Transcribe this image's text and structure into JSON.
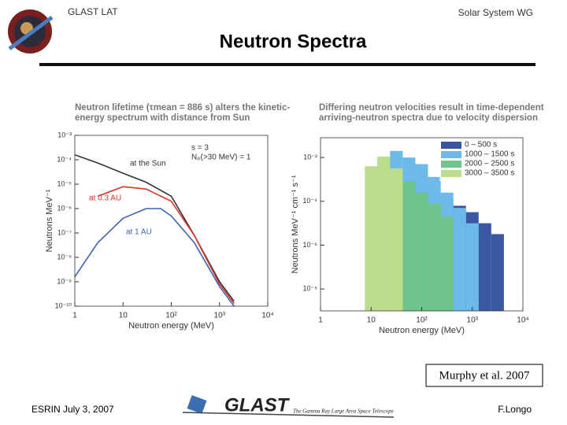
{
  "header": {
    "left": "GLAST LAT",
    "right": "Solar System WG",
    "title": "Neutron Spectra"
  },
  "citation": "Murphy et al. 2007",
  "footer": {
    "left": "ESRIN July 3, 2007",
    "logo": "GLAST",
    "tagline": "The Gamma Ray Large Area Space Telescope",
    "right": "F.Longo"
  },
  "chart_data": [
    {
      "type": "line",
      "log_x": true,
      "log_y": true,
      "title": "Neutron lifetime (τmean = 886 s) alters the kinetic-energy spectrum with distance from Sun",
      "x_label": "Neutron energy (MeV)",
      "y_label": "Neutrons MeV⁻¹",
      "annotations": [
        "s = 3",
        "Nₚ(>30 MeV) = 1"
      ],
      "xlim": [
        1,
        10000
      ],
      "xticks": [
        1,
        10,
        {
          "value": 100,
          "label": "10²"
        },
        {
          "value": 1000,
          "label": "10³"
        },
        {
          "value": 10000,
          "label": "10⁴"
        }
      ],
      "ylim": [
        1e-10,
        0.001
      ],
      "yticks": [
        {
          "value": 0.001,
          "label": "10⁻³"
        },
        {
          "value": 0.0001,
          "label": "10⁻⁴"
        },
        {
          "value": 1e-05,
          "label": "10⁻⁵"
        },
        {
          "value": 1e-06,
          "label": "10⁻⁶"
        },
        {
          "value": 1e-07,
          "label": "10⁻⁷"
        },
        {
          "value": 1e-08,
          "label": "10⁻⁸"
        },
        {
          "value": 1e-09,
          "label": "10⁻⁹"
        },
        {
          "value": 1e-10,
          "label": "10⁻¹⁰"
        }
      ],
      "series": [
        {
          "name": "at the Sun",
          "color": "#333333",
          "x": [
            1,
            3,
            10,
            30,
            100,
            300,
            1000,
            2000
          ],
          "values": [
            0.00016,
            7.4e-05,
            2.8e-05,
            1.2e-05,
            3.2e-06,
            8e-08,
            1e-09,
            1.6e-10
          ]
        },
        {
          "name": "at 0.3 AU",
          "color": "#d9342b",
          "x": [
            3,
            10,
            30,
            100,
            300,
            1000,
            2000
          ],
          "values": [
            3.2e-06,
            7.9e-06,
            6.3e-06,
            2e-06,
            8e-08,
            8e-10,
            1.3e-10
          ]
        },
        {
          "name": "at 1 AU",
          "color": "#3f63ad",
          "x": [
            1,
            3,
            10,
            30,
            60,
            100,
            300,
            1000,
            2000
          ],
          "values": [
            1.6e-09,
            4e-08,
            4e-07,
            1e-06,
            1e-06,
            5e-07,
            4e-08,
            6.3e-10,
            1e-10
          ]
        }
      ]
    },
    {
      "type": "histogram",
      "log_x": true,
      "log_y": true,
      "legend": "upper right",
      "title": "Differing neutron velocities result in time-dependent arriving-neutron spectra due to velocity dispersion",
      "x_label": "Neutron energy (MeV)",
      "y_label": "Neutrons MeV⁻¹ cm⁻¹ s⁻¹",
      "xlim": [
        1,
        10000
      ],
      "xticks": [
        1,
        10,
        {
          "value": 100,
          "label": "10²"
        },
        {
          "value": 1000,
          "label": "10³"
        },
        {
          "value": 10000,
          "label": "10⁴"
        }
      ],
      "ylim": [
        1e-09,
        0.08
      ],
      "yticks": [
        {
          "value": 0.01,
          "label": "10⁻²"
        },
        {
          "value": 0.0001,
          "label": "10⁻⁴"
        },
        {
          "value": 1e-06,
          "label": "10⁻⁶"
        },
        {
          "value": 1e-08,
          "label": "10⁻⁸"
        }
      ],
      "bins": [
        7.5,
        13.3,
        23.7,
        42.2,
        75,
        133,
        237,
        422,
        750,
        1334,
        2371,
        4217
      ],
      "series": [
        {
          "name": "0 – 500 s",
          "color": "#3b56a3",
          "values": [
            null,
            null,
            null,
            null,
            null,
            0.0005,
            0.000125,
            6.3e-05,
            3.2e-05,
            1e-05,
            3.2e-06
          ]
        },
        {
          "name": "1000 – 1500 s",
          "color": "#6cb9ea",
          "values": [
            null,
            0.01,
            0.02,
            0.01,
            0.005,
            0.0013,
            0.00025,
            5e-05,
            1e-05,
            null,
            null
          ]
        },
        {
          "name": "2000 – 2500 s",
          "color": "#6fc48c",
          "values": [
            null,
            0.005,
            0.0013,
            0.0008,
            0.00025,
            8e-05,
            2e-05,
            null,
            null,
            null,
            null
          ]
        },
        {
          "name": "3000 – 3500 s",
          "color": "#bcde8c",
          "values": [
            0.004,
            0.011,
            0.0032,
            null,
            null,
            null,
            null,
            null,
            null,
            null,
            null
          ]
        }
      ]
    }
  ]
}
